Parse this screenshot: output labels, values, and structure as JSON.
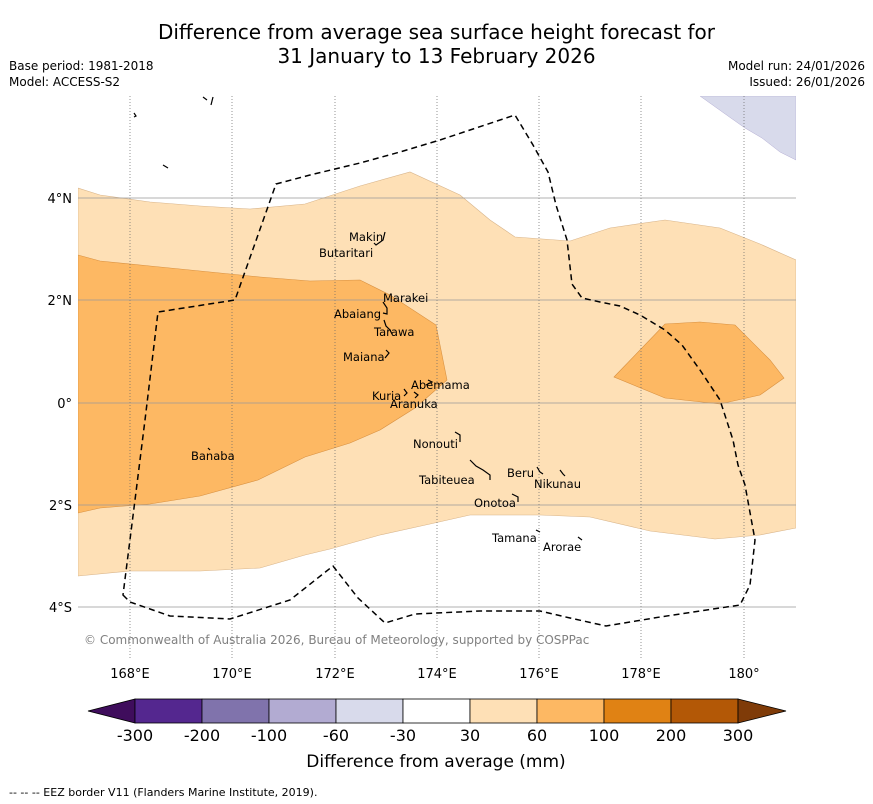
{
  "title_line1": "Difference from average sea surface height forecast for",
  "title_line2": "31 January to 13 February 2026",
  "base_period": "Base period: 1981-2018",
  "model": "Model: ACCESS-S2",
  "model_run": "Model run: 24/01/2026",
  "issued": "Issued: 26/01/2026",
  "copyright": "© Commonwealth of Australia 2026, Bureau of Meteorology, supported by COSPPac",
  "lat_labels": [
    "4°N",
    "2°N",
    "0°",
    "2°S",
    "4°S"
  ],
  "lon_labels": [
    "168°E",
    "170°E",
    "172°E",
    "174°E",
    "176°E",
    "178°E",
    "180°"
  ],
  "islands": [
    {
      "name": "Makin"
    },
    {
      "name": "Butaritari"
    },
    {
      "name": "Marakei"
    },
    {
      "name": "Abaiang"
    },
    {
      "name": "Tarawa"
    },
    {
      "name": "Maiana"
    },
    {
      "name": "Abemama"
    },
    {
      "name": "Kuria"
    },
    {
      "name": "Aranuka"
    },
    {
      "name": "Nonouti"
    },
    {
      "name": "Banaba"
    },
    {
      "name": "Beru"
    },
    {
      "name": "Tabiteuea"
    },
    {
      "name": "Nikunau"
    },
    {
      "name": "Onotoa"
    },
    {
      "name": "Tamana"
    },
    {
      "name": "Arorae"
    }
  ],
  "colorbar": {
    "ticks": [
      "-300",
      "-200",
      "-100",
      "-60",
      "-30",
      "30",
      "60",
      "100",
      "200",
      "300"
    ],
    "colors": [
      "#3f0d5c",
      "#54278f",
      "#8073ac",
      "#b2abd2",
      "#d8daeb",
      "#ffffff",
      "#fee0b6",
      "#fdb863",
      "#e08214",
      "#b35806",
      "#7f3b08"
    ],
    "label": "Difference from average (mm)"
  },
  "footer": "--  --  -- EEZ border V11 (Flanders Marine Institute, 2019)."
}
